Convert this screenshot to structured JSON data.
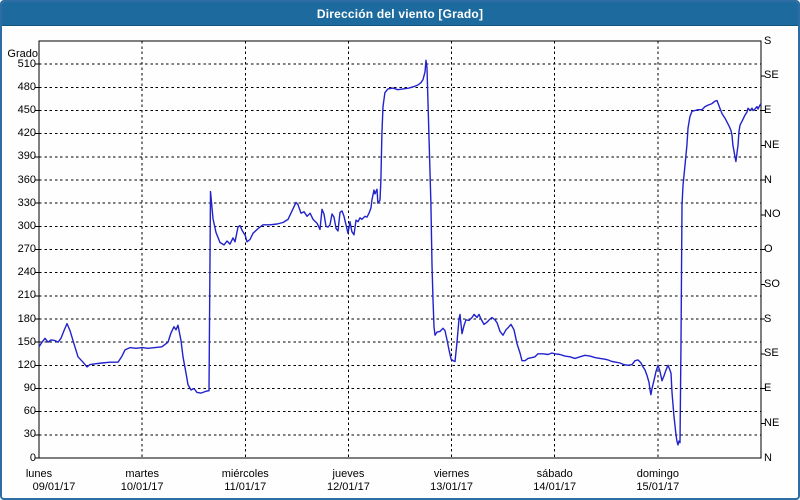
{
  "window": {
    "title": "Dirección del viento [Grado]",
    "title_bg": "#1d6b9e",
    "border_color": "#2e6da4"
  },
  "chart_data": {
    "type": "line",
    "title": "Dirección del viento [Grado]",
    "ylabel_left": "Grado",
    "ylim": [
      0,
      540
    ],
    "xlim_days": [
      0,
      7
    ],
    "grid": "dashed",
    "line_color": "#2222cc",
    "y_left_ticks": [
      0,
      30,
      60,
      90,
      120,
      150,
      180,
      210,
      240,
      270,
      300,
      330,
      360,
      390,
      420,
      450,
      480,
      510
    ],
    "y_right_ticks": [
      {
        "deg": 540,
        "label": "S"
      },
      {
        "deg": 495,
        "label": "SE"
      },
      {
        "deg": 450,
        "label": "E"
      },
      {
        "deg": 405,
        "label": "NE"
      },
      {
        "deg": 360,
        "label": "N"
      },
      {
        "deg": 315,
        "label": "NO"
      },
      {
        "deg": 270,
        "label": "O"
      },
      {
        "deg": 225,
        "label": "SO"
      },
      {
        "deg": 180,
        "label": "S"
      },
      {
        "deg": 135,
        "label": "SE"
      },
      {
        "deg": 90,
        "label": "E"
      },
      {
        "deg": 45,
        "label": "NE"
      },
      {
        "deg": 0,
        "label": "N"
      }
    ],
    "x_days": [
      {
        "name": "lunes",
        "date": "09/01/17"
      },
      {
        "name": "martes",
        "date": "10/01/17"
      },
      {
        "name": "miércoles",
        "date": "11/01/17"
      },
      {
        "name": "jueves",
        "date": "12/01/17"
      },
      {
        "name": "viernes",
        "date": "13/01/17"
      },
      {
        "name": "sábado",
        "date": "14/01/17"
      },
      {
        "name": "domingo",
        "date": "15/01/17"
      }
    ],
    "series": [
      {
        "name": "Dirección del viento",
        "units": "Grado",
        "points": [
          [
            0,
            144
          ],
          [
            0.029,
            150
          ],
          [
            0.058,
            155
          ],
          [
            0.087,
            150
          ],
          [
            0.116,
            153
          ],
          [
            0.155,
            152
          ],
          [
            0.184,
            150
          ],
          [
            0.213,
            155
          ],
          [
            0.242,
            165
          ],
          [
            0.271,
            174
          ],
          [
            0.301,
            165
          ],
          [
            0.33,
            152
          ],
          [
            0.378,
            131
          ],
          [
            0.427,
            124
          ],
          [
            0.465,
            118
          ],
          [
            0.494,
            121
          ],
          [
            0.543,
            122
          ],
          [
            0.611,
            123
          ],
          [
            0.688,
            124
          ],
          [
            0.766,
            124
          ],
          [
            0.805,
            132
          ],
          [
            0.834,
            140
          ],
          [
            0.882,
            143
          ],
          [
            0.94,
            142
          ],
          [
            1,
            143
          ],
          [
            1.057,
            142
          ],
          [
            1.125,
            143
          ],
          [
            1.192,
            144
          ],
          [
            1.251,
            150
          ],
          [
            1.28,
            162
          ],
          [
            1.309,
            170
          ],
          [
            1.328,
            166
          ],
          [
            1.348,
            172
          ],
          [
            1.377,
            152
          ],
          [
            1.396,
            131
          ],
          [
            1.425,
            110
          ],
          [
            1.445,
            95
          ],
          [
            1.474,
            88
          ],
          [
            1.503,
            90
          ],
          [
            1.532,
            85
          ],
          [
            1.571,
            84
          ],
          [
            1.609,
            86
          ],
          [
            1.638,
            87
          ],
          [
            1.648,
            87
          ],
          [
            1.663,
            345
          ],
          [
            1.687,
            310
          ],
          [
            1.716,
            292
          ],
          [
            1.755,
            279
          ],
          [
            1.794,
            276
          ],
          [
            1.823,
            281
          ],
          [
            1.852,
            277
          ],
          [
            1.881,
            285
          ],
          [
            1.9,
            280
          ],
          [
            1.929,
            299
          ],
          [
            1.949,
            301
          ],
          [
            1.968,
            295
          ],
          [
            2,
            288
          ],
          [
            2.017,
            280
          ],
          [
            2.046,
            283
          ],
          [
            2.075,
            291
          ],
          [
            2.123,
            297
          ],
          [
            2.172,
            302
          ],
          [
            2.24,
            302
          ],
          [
            2.308,
            303
          ],
          [
            2.366,
            305
          ],
          [
            2.414,
            309
          ],
          [
            2.453,
            320
          ],
          [
            2.492,
            331
          ],
          [
            2.511,
            328
          ],
          [
            2.54,
            317
          ],
          [
            2.569,
            319
          ],
          [
            2.599,
            313
          ],
          [
            2.628,
            317
          ],
          [
            2.657,
            309
          ],
          [
            2.695,
            304
          ],
          [
            2.724,
            296
          ],
          [
            2.744,
            322
          ],
          [
            2.763,
            316
          ],
          [
            2.783,
            300
          ],
          [
            2.802,
            299
          ],
          [
            2.821,
            302
          ],
          [
            2.841,
            316
          ],
          [
            2.86,
            312
          ],
          [
            2.88,
            297
          ],
          [
            2.899,
            294
          ],
          [
            2.918,
            318
          ],
          [
            2.938,
            320
          ],
          [
            2.957,
            313
          ],
          [
            2.976,
            302
          ],
          [
            2.996,
            291
          ],
          [
            3.015,
            306
          ],
          [
            3.034,
            293
          ],
          [
            3.054,
            289
          ],
          [
            3.073,
            308
          ],
          [
            3.093,
            306
          ],
          [
            3.112,
            311
          ],
          [
            3.131,
            309
          ],
          [
            3.16,
            313
          ],
          [
            3.18,
            312
          ],
          [
            3.199,
            317
          ],
          [
            3.219,
            324
          ],
          [
            3.228,
            334
          ],
          [
            3.248,
            347
          ],
          [
            3.257,
            342
          ],
          [
            3.277,
            348
          ],
          [
            3.286,
            330
          ],
          [
            3.306,
            334
          ],
          [
            3.315,
            360
          ],
          [
            3.325,
            420
          ],
          [
            3.335,
            455
          ],
          [
            3.354,
            473
          ],
          [
            3.383,
            478
          ],
          [
            3.432,
            479
          ],
          [
            3.48,
            477
          ],
          [
            3.529,
            478
          ],
          [
            3.587,
            479
          ],
          [
            3.635,
            481
          ],
          [
            3.674,
            483
          ],
          [
            3.703,
            486
          ],
          [
            3.723,
            490
          ],
          [
            3.742,
            500
          ],
          [
            3.752,
            515
          ],
          [
            3.762,
            505
          ],
          [
            3.771,
            460
          ],
          [
            3.781,
            415
          ],
          [
            3.8,
            330
          ],
          [
            3.81,
            250
          ],
          [
            3.82,
            205
          ],
          [
            3.83,
            170
          ],
          [
            3.839,
            159
          ],
          [
            3.859,
            163
          ],
          [
            3.888,
            164
          ],
          [
            3.917,
            168
          ],
          [
            3.936,
            165
          ],
          [
            3.956,
            153
          ],
          [
            3.975,
            140
          ],
          [
            3.995,
            128
          ],
          [
            4.014,
            126
          ],
          [
            4.033,
            125
          ],
          [
            4.053,
            150
          ],
          [
            4.072,
            180
          ],
          [
            4.082,
            186
          ],
          [
            4.101,
            161
          ],
          [
            4.121,
            172
          ],
          [
            4.14,
            179
          ],
          [
            4.169,
            178
          ],
          [
            4.198,
            182
          ],
          [
            4.218,
            186
          ],
          [
            4.247,
            182
          ],
          [
            4.266,
            186
          ],
          [
            4.285,
            180
          ],
          [
            4.314,
            173
          ],
          [
            4.344,
            176
          ],
          [
            4.373,
            180
          ],
          [
            4.392,
            182
          ],
          [
            4.421,
            179
          ],
          [
            4.441,
            175
          ],
          [
            4.47,
            164
          ],
          [
            4.499,
            159
          ],
          [
            4.528,
            166
          ],
          [
            4.557,
            170
          ],
          [
            4.576,
            173
          ],
          [
            4.605,
            166
          ],
          [
            4.634,
            148
          ],
          [
            4.663,
            136
          ],
          [
            4.683,
            126
          ],
          [
            4.712,
            126
          ],
          [
            4.741,
            129
          ],
          [
            4.78,
            130
          ],
          [
            4.809,
            131
          ],
          [
            4.838,
            135
          ],
          [
            4.886,
            135
          ],
          [
            4.935,
            134
          ],
          [
            4.973,
            136
          ],
          [
            5.002,
            135
          ],
          [
            5.051,
            134
          ],
          [
            5.099,
            132
          ],
          [
            5.148,
            131
          ],
          [
            5.196,
            129
          ],
          [
            5.245,
            131
          ],
          [
            5.293,
            133
          ],
          [
            5.342,
            132
          ],
          [
            5.39,
            130
          ],
          [
            5.439,
            129
          ],
          [
            5.487,
            128
          ],
          [
            5.516,
            127
          ],
          [
            5.555,
            125
          ],
          [
            5.594,
            124
          ],
          [
            5.633,
            123
          ],
          [
            5.671,
            121
          ],
          [
            5.71,
            120
          ],
          [
            5.749,
            121
          ],
          [
            5.778,
            126
          ],
          [
            5.807,
            127
          ],
          [
            5.837,
            123
          ],
          [
            5.856,
            118
          ],
          [
            5.875,
            114
          ],
          [
            5.895,
            107
          ],
          [
            5.914,
            98
          ],
          [
            5.924,
            88
          ],
          [
            5.933,
            82
          ],
          [
            5.943,
            90
          ],
          [
            5.962,
            100
          ],
          [
            5.982,
            112
          ],
          [
            6.001,
            120
          ],
          [
            6.021,
            112
          ],
          [
            6.04,
            100
          ],
          [
            6.059,
            106
          ],
          [
            6.079,
            114
          ],
          [
            6.098,
            120
          ],
          [
            6.108,
            117
          ],
          [
            6.127,
            110
          ],
          [
            6.137,
            85
          ],
          [
            6.156,
            55
          ],
          [
            6.176,
            30
          ],
          [
            6.185,
            22
          ],
          [
            6.195,
            17
          ],
          [
            6.205,
            22
          ],
          [
            6.215,
            20
          ],
          [
            6.224,
            150
          ],
          [
            6.234,
            327
          ],
          [
            6.244,
            353
          ],
          [
            6.263,
            379
          ],
          [
            6.282,
            405
          ],
          [
            6.292,
            427
          ],
          [
            6.311,
            442
          ],
          [
            6.331,
            449
          ],
          [
            6.36,
            450
          ],
          [
            6.389,
            451
          ],
          [
            6.428,
            451
          ],
          [
            6.457,
            455
          ],
          [
            6.486,
            457
          ],
          [
            6.525,
            459
          ],
          [
            6.554,
            462
          ],
          [
            6.573,
            463
          ],
          [
            6.602,
            453
          ],
          [
            6.622,
            446
          ],
          [
            6.651,
            440
          ],
          [
            6.67,
            435
          ],
          [
            6.69,
            430
          ],
          [
            6.709,
            424
          ],
          [
            6.719,
            418
          ],
          [
            6.728,
            405
          ],
          [
            6.748,
            390
          ],
          [
            6.757,
            384
          ],
          [
            6.777,
            405
          ],
          [
            6.787,
            423
          ],
          [
            6.796,
            431
          ],
          [
            6.816,
            436
          ],
          [
            6.845,
            444
          ],
          [
            6.864,
            448
          ],
          [
            6.874,
            453
          ],
          [
            6.893,
            450
          ],
          [
            6.913,
            453
          ],
          [
            6.922,
            450
          ],
          [
            6.942,
            452
          ],
          [
            6.961,
            455
          ],
          [
            6.971,
            452
          ],
          [
            6.99,
            457
          ],
          [
            7,
            459
          ]
        ]
      }
    ]
  }
}
